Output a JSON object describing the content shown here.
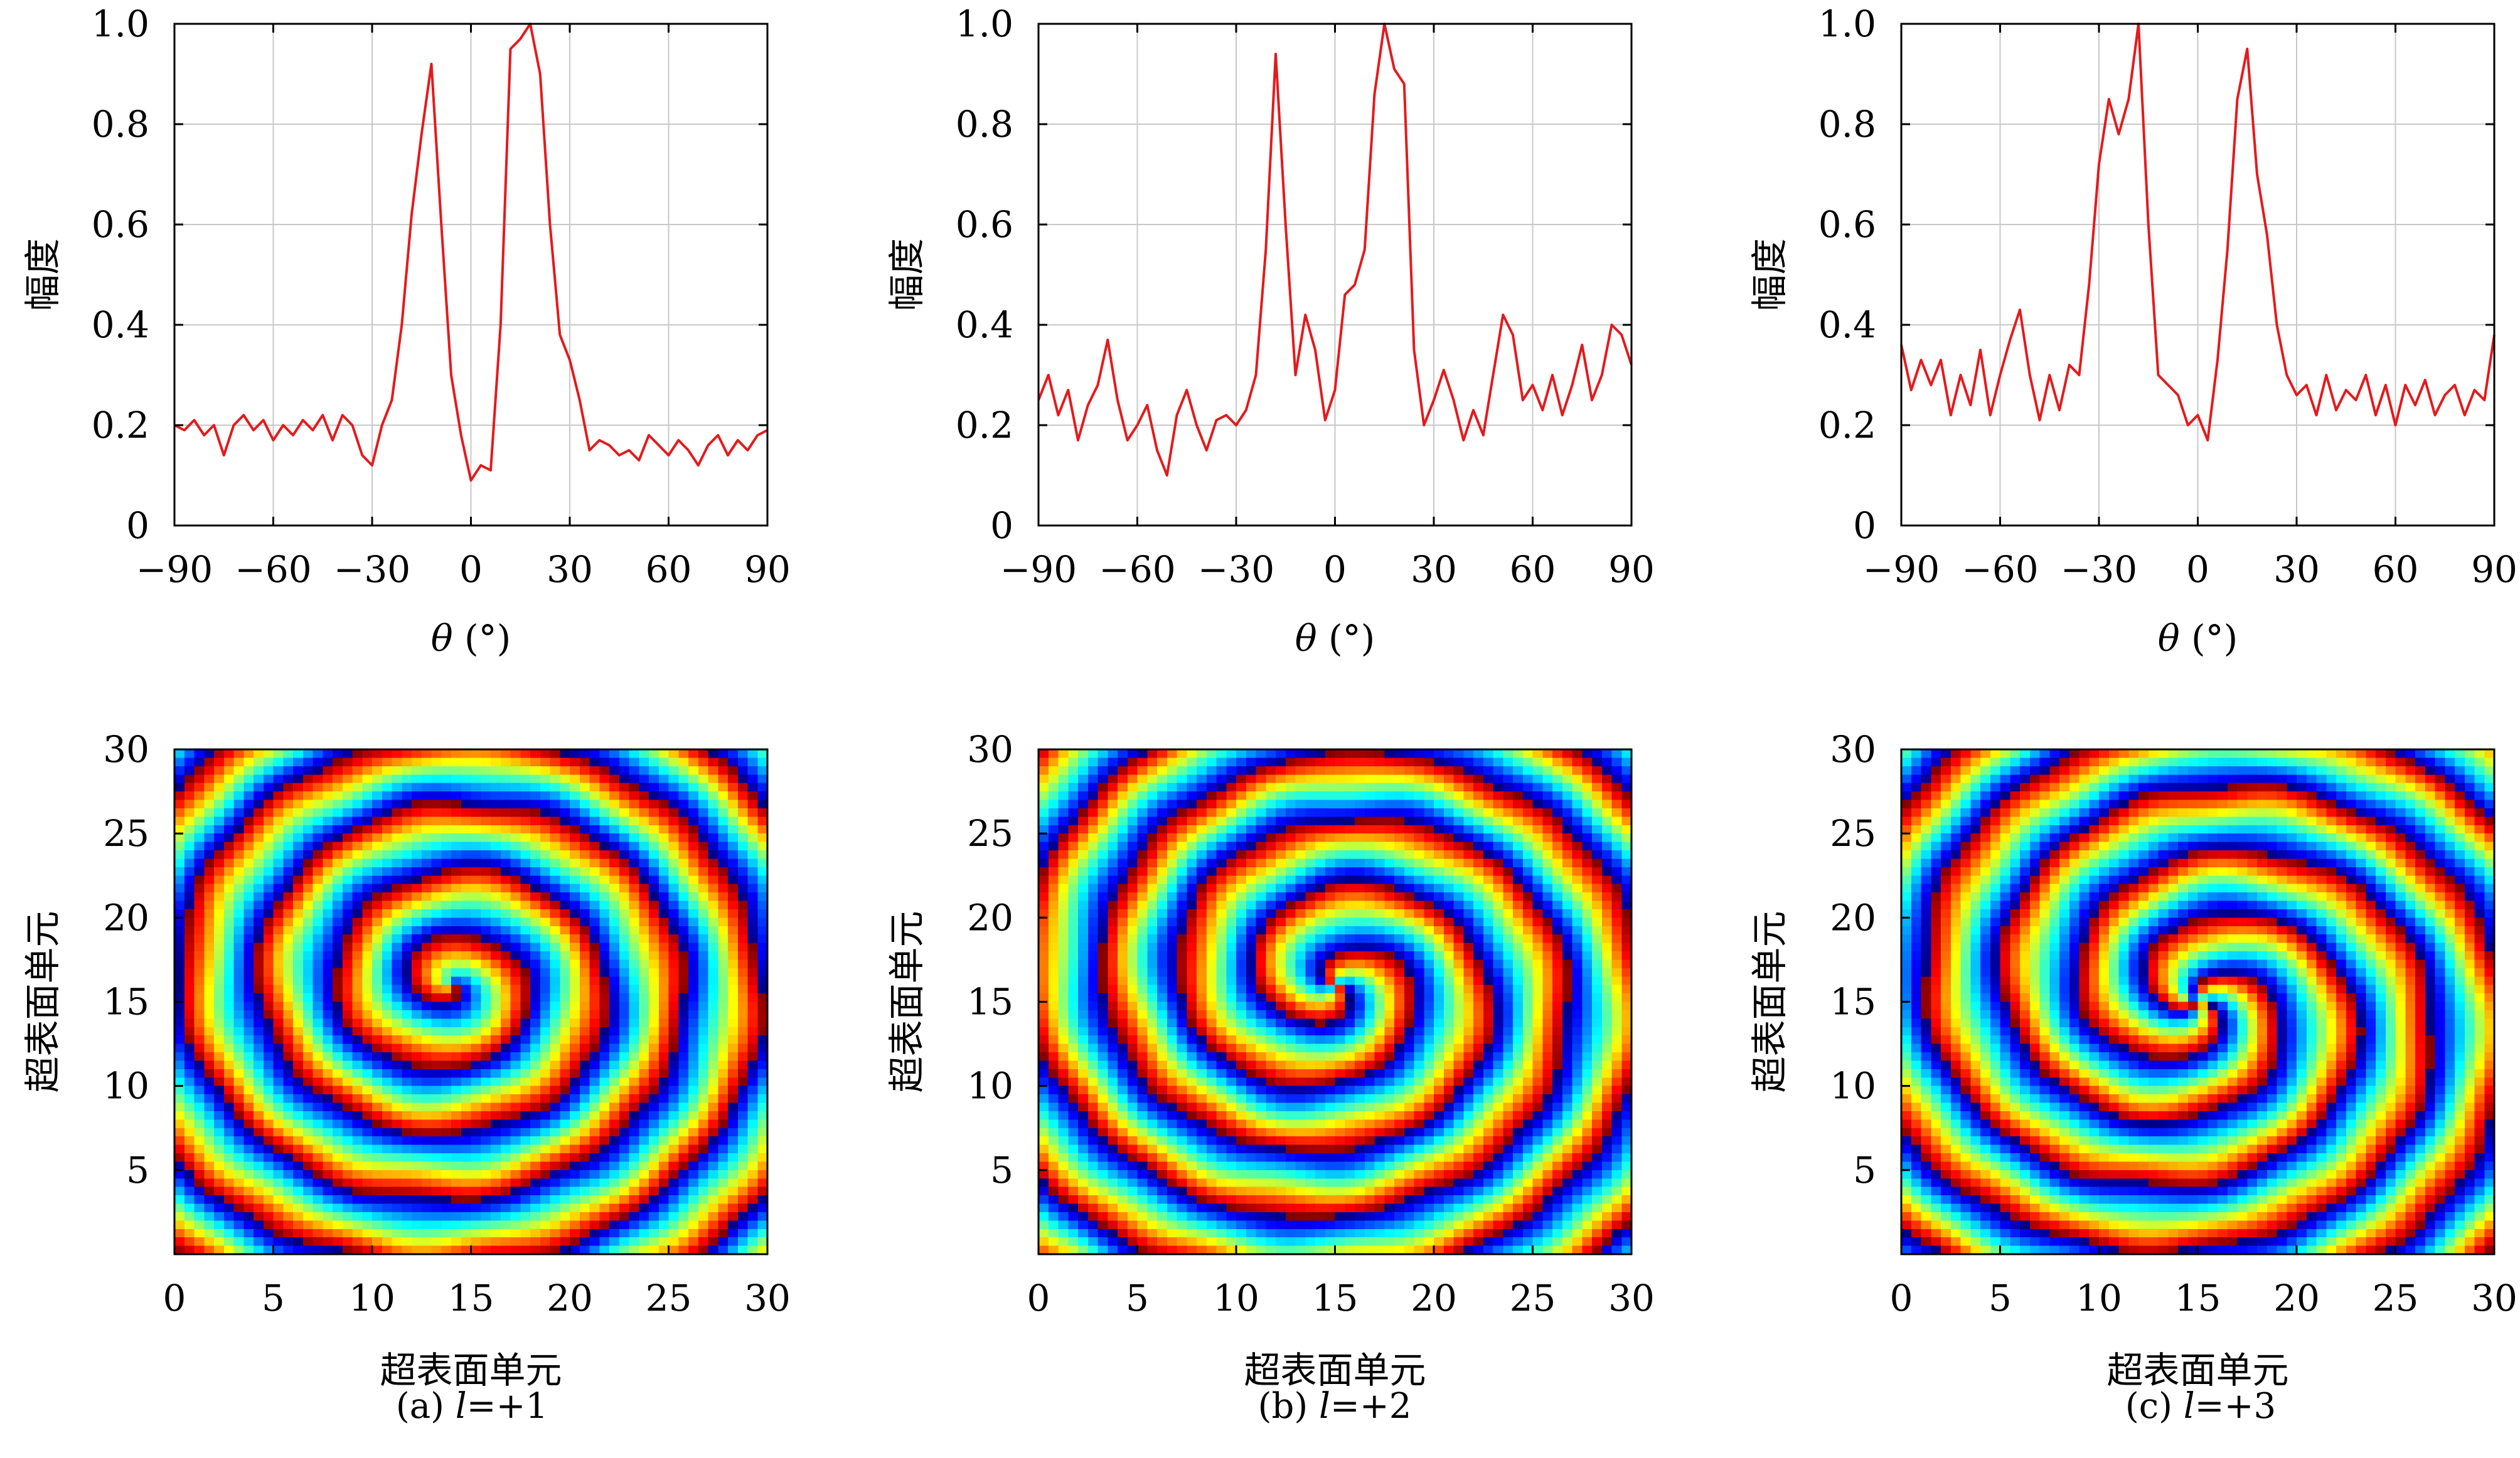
{
  "chart_data": [
    {
      "type": "line",
      "panel": "a",
      "ylabel": "幅度",
      "xlabel_symbol": "θ",
      "xlabel_unit": "(°)",
      "xlim": [
        -90,
        90
      ],
      "ylim": [
        0,
        1.0
      ],
      "xticks": [
        "−90",
        "−60",
        "−30",
        "0",
        "30",
        "60",
        "90"
      ],
      "yticks": [
        "0",
        "0.2",
        "0.4",
        "0.6",
        "0.8",
        "1.0"
      ],
      "grid": true,
      "color": "#e41a1c",
      "x": [
        -90,
        -87,
        -84,
        -81,
        -78,
        -75,
        -72,
        -69,
        -66,
        -63,
        -60,
        -57,
        -54,
        -51,
        -48,
        -45,
        -42,
        -39,
        -36,
        -33,
        -30,
        -27,
        -24,
        -21,
        -18,
        -15,
        -12,
        -9,
        -6,
        -3,
        0,
        3,
        6,
        9,
        12,
        15,
        18,
        21,
        24,
        27,
        30,
        33,
        36,
        39,
        42,
        45,
        48,
        51,
        54,
        57,
        60,
        63,
        66,
        69,
        72,
        75,
        78,
        81,
        84,
        87,
        90
      ],
      "y": [
        0.2,
        0.19,
        0.21,
        0.18,
        0.2,
        0.14,
        0.2,
        0.22,
        0.19,
        0.21,
        0.17,
        0.2,
        0.18,
        0.21,
        0.19,
        0.22,
        0.17,
        0.22,
        0.2,
        0.14,
        0.12,
        0.2,
        0.25,
        0.4,
        0.62,
        0.78,
        0.92,
        0.6,
        0.3,
        0.18,
        0.09,
        0.12,
        0.11,
        0.4,
        0.95,
        0.97,
        1.0,
        0.9,
        0.6,
        0.38,
        0.33,
        0.25,
        0.15,
        0.17,
        0.16,
        0.14,
        0.15,
        0.13,
        0.18,
        0.16,
        0.14,
        0.17,
        0.15,
        0.12,
        0.16,
        0.18,
        0.14,
        0.17,
        0.15,
        0.18,
        0.19
      ]
    },
    {
      "type": "line",
      "panel": "b",
      "ylabel": "幅度",
      "xlabel_symbol": "θ",
      "xlabel_unit": "(°)",
      "xlim": [
        -90,
        90
      ],
      "ylim": [
        0,
        1.0
      ],
      "xticks": [
        "−90",
        "−60",
        "−30",
        "0",
        "30",
        "60",
        "90"
      ],
      "yticks": [
        "0",
        "0.2",
        "0.4",
        "0.6",
        "0.8",
        "1.0"
      ],
      "grid": true,
      "color": "#e41a1c",
      "x": [
        -90,
        -87,
        -84,
        -81,
        -78,
        -75,
        -72,
        -69,
        -66,
        -63,
        -60,
        -57,
        -54,
        -51,
        -48,
        -45,
        -42,
        -39,
        -36,
        -33,
        -30,
        -27,
        -24,
        -21,
        -18,
        -15,
        -12,
        -9,
        -6,
        -3,
        0,
        3,
        6,
        9,
        12,
        15,
        18,
        21,
        24,
        27,
        30,
        33,
        36,
        39,
        42,
        45,
        48,
        51,
        54,
        57,
        60,
        63,
        66,
        69,
        72,
        75,
        78,
        81,
        84,
        87,
        90
      ],
      "y": [
        0.25,
        0.3,
        0.22,
        0.27,
        0.17,
        0.24,
        0.28,
        0.37,
        0.25,
        0.17,
        0.2,
        0.24,
        0.15,
        0.1,
        0.22,
        0.27,
        0.2,
        0.15,
        0.21,
        0.22,
        0.2,
        0.23,
        0.3,
        0.55,
        0.94,
        0.6,
        0.3,
        0.42,
        0.35,
        0.21,
        0.27,
        0.46,
        0.48,
        0.55,
        0.86,
        1.0,
        0.91,
        0.88,
        0.35,
        0.2,
        0.25,
        0.31,
        0.25,
        0.17,
        0.23,
        0.18,
        0.3,
        0.42,
        0.38,
        0.25,
        0.28,
        0.23,
        0.3,
        0.22,
        0.28,
        0.36,
        0.25,
        0.3,
        0.4,
        0.38,
        0.32
      ]
    },
    {
      "type": "line",
      "panel": "c",
      "ylabel": "幅度",
      "xlabel_symbol": "θ",
      "xlabel_unit": "(°)",
      "xlim": [
        -90,
        90
      ],
      "ylim": [
        0,
        1.0
      ],
      "xticks": [
        "−90",
        "−60",
        "−30",
        "0",
        "30",
        "60",
        "90"
      ],
      "yticks": [
        "0",
        "0.2",
        "0.4",
        "0.6",
        "0.8",
        "1.0"
      ],
      "grid": true,
      "color": "#e41a1c",
      "x": [
        -90,
        -87,
        -84,
        -81,
        -78,
        -75,
        -72,
        -69,
        -66,
        -63,
        -60,
        -57,
        -54,
        -51,
        -48,
        -45,
        -42,
        -39,
        -36,
        -33,
        -30,
        -27,
        -24,
        -21,
        -18,
        -15,
        -12,
        -9,
        -6,
        -3,
        0,
        3,
        6,
        9,
        12,
        15,
        18,
        21,
        24,
        27,
        30,
        33,
        36,
        39,
        42,
        45,
        48,
        51,
        54,
        57,
        60,
        63,
        66,
        69,
        72,
        75,
        78,
        81,
        84,
        87,
        90
      ],
      "y": [
        0.36,
        0.27,
        0.33,
        0.28,
        0.33,
        0.22,
        0.3,
        0.24,
        0.35,
        0.22,
        0.3,
        0.37,
        0.43,
        0.3,
        0.21,
        0.3,
        0.23,
        0.32,
        0.3,
        0.48,
        0.72,
        0.85,
        0.78,
        0.85,
        1.0,
        0.6,
        0.3,
        0.28,
        0.26,
        0.2,
        0.22,
        0.17,
        0.33,
        0.55,
        0.85,
        0.95,
        0.7,
        0.58,
        0.4,
        0.3,
        0.26,
        0.28,
        0.22,
        0.3,
        0.23,
        0.27,
        0.25,
        0.3,
        0.22,
        0.28,
        0.2,
        0.28,
        0.24,
        0.29,
        0.22,
        0.26,
        0.28,
        0.22,
        0.27,
        0.25,
        0.38
      ]
    },
    {
      "type": "heatmap",
      "panel": "a",
      "ylabel": "超表面单元",
      "xlabel": "超表面单元",
      "xlim": [
        0,
        30
      ],
      "ylim": [
        0,
        30
      ],
      "xticks": [
        "0",
        "5",
        "10",
        "15",
        "20",
        "25",
        "30"
      ],
      "yticks": [
        "5",
        "10",
        "15",
        "20",
        "25",
        "30"
      ],
      "colormap": "jet",
      "topological_charge": 1,
      "center": [
        14,
        16
      ]
    },
    {
      "type": "heatmap",
      "panel": "b",
      "ylabel": "超表面单元",
      "xlabel": "超表面单元",
      "xlim": [
        0,
        30
      ],
      "ylim": [
        0,
        30
      ],
      "xticks": [
        "0",
        "5",
        "10",
        "15",
        "20",
        "25",
        "30"
      ],
      "yticks": [
        "5",
        "10",
        "15",
        "20",
        "25",
        "30"
      ],
      "colormap": "jet",
      "topological_charge": 2,
      "center": [
        15,
        16
      ]
    },
    {
      "type": "heatmap",
      "panel": "c",
      "ylabel": "超表面单元",
      "xlabel": "超表面单元",
      "xlim": [
        0,
        30
      ],
      "ylim": [
        0,
        30
      ],
      "xticks": [
        "0",
        "5",
        "10",
        "15",
        "20",
        "25",
        "30"
      ],
      "yticks": [
        "5",
        "10",
        "15",
        "20",
        "25",
        "30"
      ],
      "colormap": "jet",
      "topological_charge": 3,
      "center": [
        15,
        15
      ]
    }
  ],
  "captions": [
    {
      "prefix": "(a) ",
      "var": "l",
      "rest": "=+1"
    },
    {
      "prefix": "(b) ",
      "var": "l",
      "rest": "=+2"
    },
    {
      "prefix": "(c) ",
      "var": "l",
      "rest": "=+3"
    }
  ]
}
